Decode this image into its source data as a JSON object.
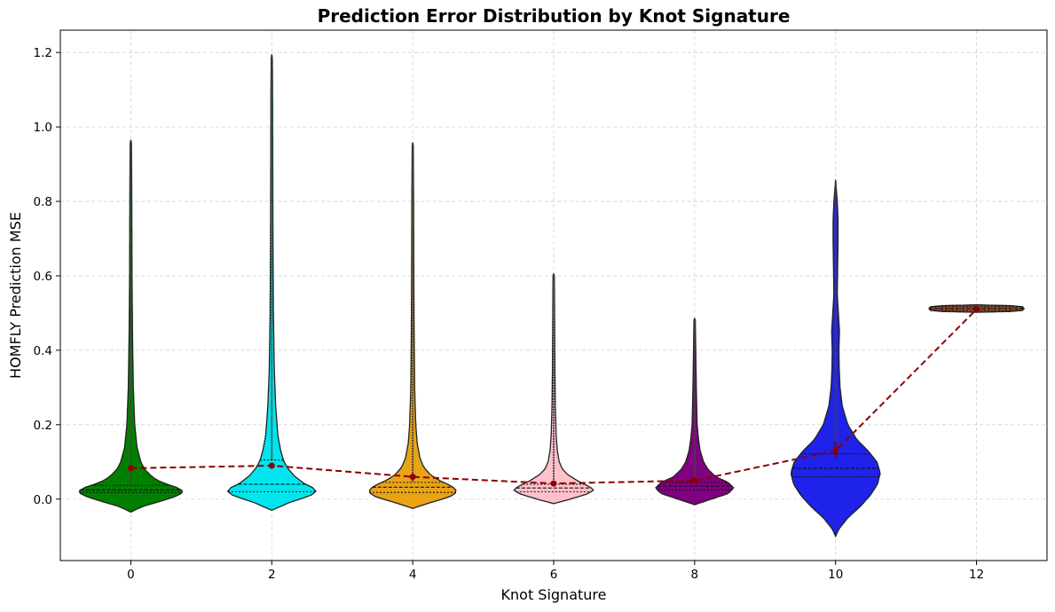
{
  "chart_data": {
    "type": "violin",
    "title": "Prediction Error Distribution by Knot Signature",
    "xlabel": "Knot Signature",
    "ylabel": "HOMFLY Prediction MSE",
    "xlim": [
      -1,
      13
    ],
    "ylim": [
      -0.165,
      1.26
    ],
    "xticks": [
      0,
      2,
      4,
      6,
      8,
      10,
      12
    ],
    "xtick_labels": [
      "0",
      "2",
      "4",
      "6",
      "8",
      "10",
      "12"
    ],
    "yticks": [
      0.0,
      0.2,
      0.4,
      0.6,
      0.8,
      1.0,
      1.2
    ],
    "ytick_labels": [
      "0.0",
      "0.2",
      "0.4",
      "0.6",
      "0.8",
      "1.0",
      "1.2"
    ],
    "grid": true,
    "violins": [
      {
        "x": 0,
        "color": "#008000",
        "min": -0.035,
        "max": 0.965,
        "q1": 0.018,
        "median": 0.025,
        "q3": 0.037,
        "mean": 0.083,
        "profile": [
          [
            -0.035,
            0.0
          ],
          [
            -0.02,
            0.2
          ],
          [
            -0.005,
            0.55
          ],
          [
            0.01,
            0.85
          ],
          [
            0.02,
            0.95
          ],
          [
            0.03,
            0.85
          ],
          [
            0.045,
            0.55
          ],
          [
            0.06,
            0.38
          ],
          [
            0.08,
            0.25
          ],
          [
            0.1,
            0.18
          ],
          [
            0.14,
            0.11
          ],
          [
            0.2,
            0.07
          ],
          [
            0.3,
            0.045
          ],
          [
            0.45,
            0.03
          ],
          [
            0.6,
            0.022
          ],
          [
            0.8,
            0.018
          ],
          [
            0.965,
            0.012
          ]
        ]
      },
      {
        "x": 2,
        "color": "#00e5ee",
        "min": -0.03,
        "max": 1.195,
        "q1": 0.02,
        "median": 0.04,
        "q3": 0.105,
        "mean": 0.09,
        "profile": [
          [
            -0.03,
            0.0
          ],
          [
            -0.01,
            0.3
          ],
          [
            0.01,
            0.7
          ],
          [
            0.025,
            0.82
          ],
          [
            0.04,
            0.6
          ],
          [
            0.06,
            0.42
          ],
          [
            0.08,
            0.3
          ],
          [
            0.1,
            0.22
          ],
          [
            0.13,
            0.16
          ],
          [
            0.17,
            0.11
          ],
          [
            0.25,
            0.07
          ],
          [
            0.35,
            0.045
          ],
          [
            0.5,
            0.03
          ],
          [
            0.7,
            0.022
          ],
          [
            0.9,
            0.018
          ],
          [
            1.1,
            0.015
          ],
          [
            1.195,
            0.01
          ]
        ]
      },
      {
        "x": 4,
        "color": "#e8a317",
        "min": -0.025,
        "max": 0.958,
        "q1": 0.018,
        "median": 0.032,
        "q3": 0.045,
        "mean": 0.06,
        "profile": [
          [
            -0.025,
            0.0
          ],
          [
            -0.01,
            0.3
          ],
          [
            0.005,
            0.65
          ],
          [
            0.02,
            0.8
          ],
          [
            0.035,
            0.7
          ],
          [
            0.05,
            0.48
          ],
          [
            0.065,
            0.32
          ],
          [
            0.085,
            0.2
          ],
          [
            0.11,
            0.13
          ],
          [
            0.15,
            0.08
          ],
          [
            0.2,
            0.055
          ],
          [
            0.3,
            0.035
          ],
          [
            0.45,
            0.025
          ],
          [
            0.6,
            0.02
          ],
          [
            0.8,
            0.016
          ],
          [
            0.958,
            0.01
          ]
        ]
      },
      {
        "x": 6,
        "color": "#ffc0cb",
        "min": -0.012,
        "max": 0.605,
        "q1": 0.02,
        "median": 0.03,
        "q3": 0.04,
        "mean": 0.042,
        "profile": [
          [
            -0.012,
            0.0
          ],
          [
            0.0,
            0.3
          ],
          [
            0.015,
            0.62
          ],
          [
            0.025,
            0.72
          ],
          [
            0.035,
            0.62
          ],
          [
            0.05,
            0.42
          ],
          [
            0.065,
            0.26
          ],
          [
            0.08,
            0.16
          ],
          [
            0.1,
            0.1
          ],
          [
            0.13,
            0.065
          ],
          [
            0.17,
            0.045
          ],
          [
            0.25,
            0.03
          ],
          [
            0.35,
            0.022
          ],
          [
            0.45,
            0.018
          ],
          [
            0.605,
            0.012
          ]
        ]
      },
      {
        "x": 8,
        "color": "#800080",
        "min": -0.015,
        "max": 0.485,
        "q1": 0.025,
        "median": 0.035,
        "q3": 0.045,
        "mean": 0.05,
        "profile": [
          [
            -0.015,
            0.0
          ],
          [
            0.0,
            0.3
          ],
          [
            0.015,
            0.6
          ],
          [
            0.03,
            0.7
          ],
          [
            0.045,
            0.6
          ],
          [
            0.06,
            0.38
          ],
          [
            0.08,
            0.24
          ],
          [
            0.1,
            0.16
          ],
          [
            0.13,
            0.1
          ],
          [
            0.16,
            0.07
          ],
          [
            0.2,
            0.045
          ],
          [
            0.3,
            0.03
          ],
          [
            0.4,
            0.02
          ],
          [
            0.485,
            0.012
          ]
        ]
      },
      {
        "x": 10,
        "color": "#1f22e8",
        "min": -0.1,
        "max": 0.858,
        "q1": 0.06,
        "median": 0.083,
        "q3": 0.122,
        "mean": 0.13,
        "profile": [
          [
            -0.1,
            0.0
          ],
          [
            -0.08,
            0.06
          ],
          [
            -0.05,
            0.22
          ],
          [
            -0.02,
            0.44
          ],
          [
            0.01,
            0.62
          ],
          [
            0.04,
            0.75
          ],
          [
            0.07,
            0.8
          ],
          [
            0.1,
            0.74
          ],
          [
            0.13,
            0.58
          ],
          [
            0.16,
            0.38
          ],
          [
            0.2,
            0.22
          ],
          [
            0.25,
            0.12
          ],
          [
            0.3,
            0.08
          ],
          [
            0.35,
            0.065
          ],
          [
            0.4,
            0.06
          ],
          [
            0.45,
            0.07
          ],
          [
            0.5,
            0.05
          ],
          [
            0.55,
            0.03
          ],
          [
            0.6,
            0.035
          ],
          [
            0.65,
            0.04
          ],
          [
            0.7,
            0.045
          ],
          [
            0.75,
            0.045
          ],
          [
            0.8,
            0.03
          ],
          [
            0.858,
            0.0
          ]
        ]
      },
      {
        "x": 12,
        "color": "#8b4a2f",
        "min": 0.502,
        "max": 0.522,
        "q1": 0.507,
        "median": 0.512,
        "q3": 0.517,
        "mean": 0.51,
        "profile": [
          [
            0.502,
            0.0
          ],
          [
            0.504,
            0.6
          ],
          [
            0.507,
            0.82
          ],
          [
            0.512,
            0.85
          ],
          [
            0.517,
            0.82
          ],
          [
            0.52,
            0.6
          ],
          [
            0.522,
            0.0
          ]
        ]
      }
    ],
    "mean_line": {
      "color": "#8b0000",
      "x": [
        0,
        2,
        4,
        6,
        8,
        10,
        12
      ],
      "y": [
        0.083,
        0.09,
        0.06,
        0.042,
        0.05,
        0.13,
        0.51
      ]
    }
  }
}
